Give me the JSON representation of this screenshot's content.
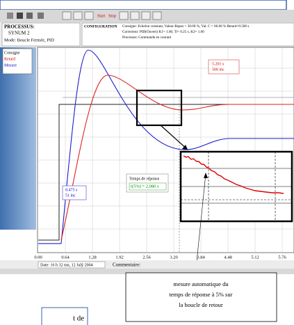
{
  "process_panel": {
    "title": "PROCESSUS:",
    "name": "SYNUM 2",
    "mode": "Mode: Boucle Fermée, PID"
  },
  "configuration": {
    "title": "CONFIGURATION",
    "lines": [
      "Consigne: Echelon constant, Valeur Repos = 30.00 %, Val. C = 60.00 % Retard=0.500 s",
      "Correcteur: PID(Ouvert) K1= 1.00, Ti= 0.25 s, K2= 1.00",
      "Processus: Commande en courant"
    ]
  },
  "toolbar": [
    "Start",
    "Stop"
  ],
  "legend": [
    "Consigne",
    "Retard",
    "Mesure"
  ],
  "x_ticks": [
    "0.00",
    "0.64",
    "1.28",
    "1.92",
    "2.56",
    "3.20",
    "3.84",
    "4.48",
    "5.12",
    "5.76"
  ],
  "annotations": {
    "marker_right": [
      "5.201 s",
      "500 inc"
    ],
    "marker_left": [
      "0.475 s",
      "51 inc"
    ],
    "response_title": "Temps de réponse",
    "response_value": "t(5%) = 2.080 s"
  },
  "footer": {
    "date": "Date: 16 h 32 mn, 12 Julý 2004",
    "comment": "Commentaire:"
  },
  "callout": [
    "mesure automatique du",
    "temps de réponse à 5% sur",
    "la boucle de retour"
  ],
  "partial_box": "t de"
}
